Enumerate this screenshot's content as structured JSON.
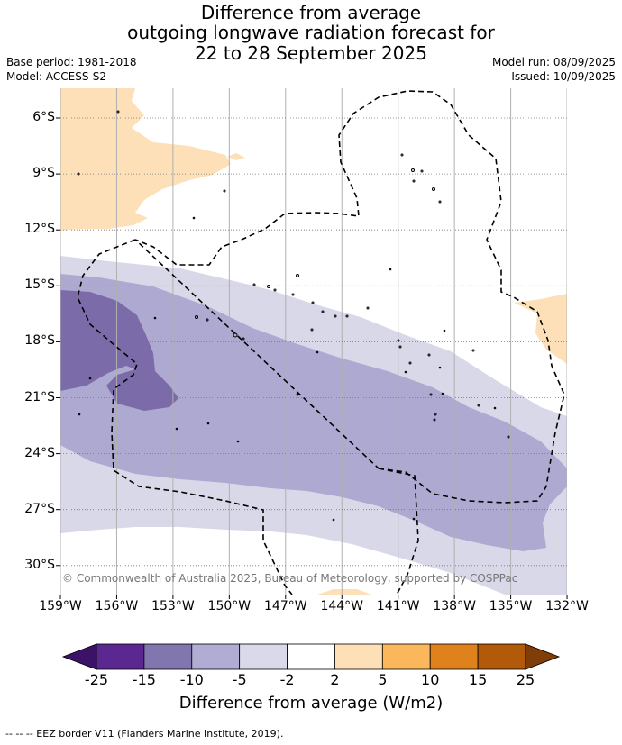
{
  "title": {
    "line1": "Difference from average",
    "line2": "outgoing longwave radiation forecast for",
    "line3": "22 to 28 September 2025"
  },
  "meta": {
    "base_period": "Base period: 1981-2018",
    "model": "Model: ACCESS-S2",
    "model_run": "Model run: 08/09/2025",
    "issued": "Issued: 10/09/2025"
  },
  "map": {
    "lat_labels": [
      "6°S",
      "9°S",
      "12°S",
      "15°S",
      "18°S",
      "21°S",
      "24°S",
      "27°S",
      "30°S"
    ],
    "lon_labels": [
      "159°W",
      "156°W",
      "153°W",
      "150°W",
      "147°W",
      "144°W",
      "141°W",
      "138°W",
      "135°W",
      "132°W"
    ],
    "copyright": "© Commonwealth of Australia 2025, Bureau of Meteorology, supported by COSPPac",
    "colors": {
      "neg_20": "#7b6ba8",
      "neg_10": "#aea9d1",
      "neg_5": "#d8d8e9",
      "pos_5": "#fde0b8"
    }
  },
  "colorbar": {
    "title": "Difference from average (W/m2)",
    "labels": [
      "-25",
      "-15",
      "-10",
      "-5",
      "-2",
      "2",
      "5",
      "10",
      "15",
      "25"
    ],
    "colors": [
      "#3c1268",
      "#5a2890",
      "#8176ae",
      "#b1acd3",
      "#d9d9ea",
      "#ffffff",
      "#fde0b8",
      "#fbb75c",
      "#e0821c",
      "#b25a0a",
      "#7f3d07"
    ]
  },
  "footer": "--  --  -- EEZ border V11 (Flanders Marine Institute, 2019)."
}
